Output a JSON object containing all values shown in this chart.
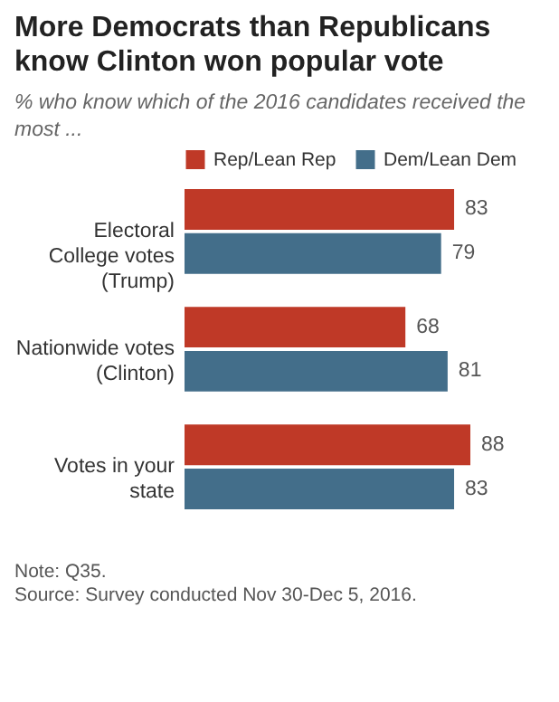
{
  "chart_data": {
    "type": "bar",
    "orientation": "horizontal",
    "title": "More Democrats than Republicans know Clinton won popular vote",
    "subtitle": "% who know which of the 2016 candidates received the most ...",
    "categories": [
      "Electoral College votes (Trump)",
      "Nationwide votes (Clinton)",
      "Votes in your state"
    ],
    "series": [
      {
        "name": "Rep/Lean Rep",
        "color": "#bf3927",
        "values": [
          83,
          68,
          88
        ]
      },
      {
        "name": "Dem/Lean Dem",
        "color": "#436e8a",
        "values": [
          79,
          81,
          83
        ]
      }
    ],
    "data_labels": true,
    "legend": "top right",
    "annotations": [
      "Note: Q35.",
      "Source: Survey conducted Nov 30-Dec 5, 2016."
    ]
  }
}
